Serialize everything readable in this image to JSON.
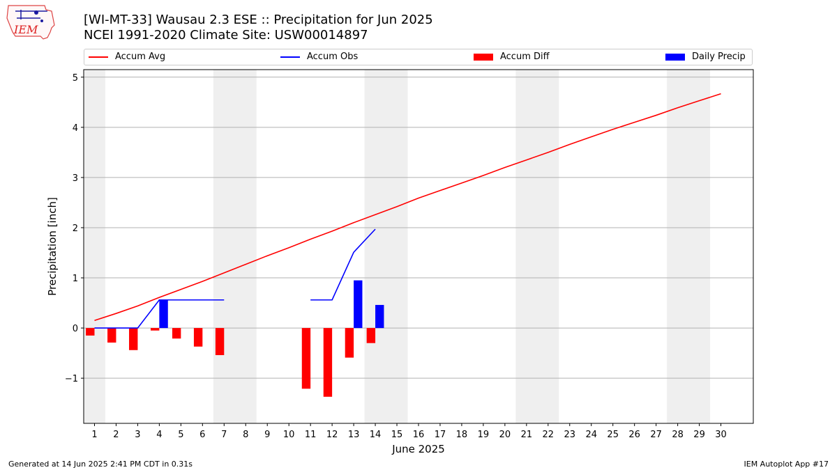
{
  "header": {
    "logo_text": "IEM",
    "title_line1": "[WI-MT-33] Wausau 2.3 ESE :: Precipitation for Jun 2025",
    "title_line2": "NCEI 1991-2020 Climate Site: USW00014897"
  },
  "legend": {
    "items": [
      {
        "label": "Accum Avg",
        "kind": "line",
        "color": "#ff0000"
      },
      {
        "label": "Accum Obs",
        "kind": "line",
        "color": "#0000ff"
      },
      {
        "label": "Accum Diff",
        "kind": "bar",
        "color": "#ff0000"
      },
      {
        "label": "Daily Precip",
        "kind": "bar",
        "color": "#0000ff"
      }
    ]
  },
  "footer": {
    "left": "Generated at 14 Jun 2025 2:41 PM CDT in 0.31s",
    "right": "IEM Autoplot App #17"
  },
  "chart_data": {
    "type": "bar",
    "title": "[WI-MT-33] Wausau 2.3 ESE :: Precipitation for Jun 2025",
    "subtitle": "NCEI 1991-2020 Climate Site: USW00014897",
    "xlabel": "June 2025",
    "ylabel": "Precipitation [inch]",
    "xlim": [
      0.5,
      31.5
    ],
    "ylim": [
      -1.9,
      5.15
    ],
    "yticks": [
      -1,
      0,
      1,
      2,
      3,
      4,
      5
    ],
    "ytick_labels": [
      "−1",
      "0",
      "1",
      "2",
      "3",
      "4",
      "5"
    ],
    "x": [
      1,
      2,
      3,
      4,
      5,
      6,
      7,
      8,
      9,
      10,
      11,
      12,
      13,
      14,
      15,
      16,
      17,
      18,
      19,
      20,
      21,
      22,
      23,
      24,
      25,
      26,
      27,
      28,
      29,
      30
    ],
    "xtick_labels": [
      "1",
      "2",
      "3",
      "4",
      "5",
      "6",
      "7",
      "8",
      "9",
      "10",
      "11",
      "12",
      "13",
      "14",
      "15",
      "16",
      "17",
      "18",
      "19",
      "20",
      "21",
      "22",
      "23",
      "24",
      "25",
      "26",
      "27",
      "28",
      "29",
      "30"
    ],
    "grid": "horizontal",
    "legend_position": "top",
    "weekend_shading": [
      [
        0.5,
        1.5
      ],
      [
        6.5,
        8.5
      ],
      [
        13.5,
        15.5
      ],
      [
        20.5,
        22.5
      ],
      [
        27.5,
        29.5
      ]
    ],
    "series": [
      {
        "name": "Accum Avg",
        "type": "line",
        "color": "#ff0000",
        "x": [
          1,
          2,
          3,
          4,
          5,
          6,
          7,
          8,
          9,
          10,
          11,
          12,
          13,
          14,
          15,
          16,
          17,
          18,
          19,
          20,
          21,
          22,
          23,
          24,
          25,
          26,
          27,
          28,
          29,
          30
        ],
        "values": [
          0.15,
          0.29,
          0.44,
          0.61,
          0.77,
          0.93,
          1.1,
          1.27,
          1.44,
          1.6,
          1.77,
          1.93,
          2.1,
          2.26,
          2.42,
          2.59,
          2.74,
          2.89,
          3.04,
          3.2,
          3.35,
          3.5,
          3.66,
          3.81,
          3.96,
          4.1,
          4.24,
          4.39,
          4.53,
          4.67
        ]
      },
      {
        "name": "Accum Obs",
        "type": "line",
        "color": "#0000ff",
        "segments": [
          {
            "x": [
              1,
              2,
              3,
              4,
              5,
              6,
              7
            ],
            "values": [
              0,
              0,
              0,
              0.56,
              0.56,
              0.56,
              0.56
            ]
          },
          {
            "x": [
              11,
              12,
              13,
              14
            ],
            "values": [
              0.56,
              0.56,
              1.51,
              1.97
            ]
          }
        ]
      },
      {
        "name": "Accum Diff",
        "type": "bar",
        "color": "#ff0000",
        "offset": -0.2,
        "x": [
          1,
          2,
          3,
          4,
          5,
          6,
          7,
          11,
          12,
          13,
          14
        ],
        "values": [
          -0.15,
          -0.29,
          -0.44,
          -0.05,
          -0.21,
          -0.37,
          -0.54,
          -1.21,
          -1.37,
          -0.59,
          -0.3
        ]
      },
      {
        "name": "Daily Precip",
        "type": "bar",
        "color": "#0000ff",
        "offset": 0.2,
        "x": [
          4,
          13,
          14
        ],
        "values": [
          0.56,
          0.95,
          0.46
        ]
      }
    ]
  }
}
